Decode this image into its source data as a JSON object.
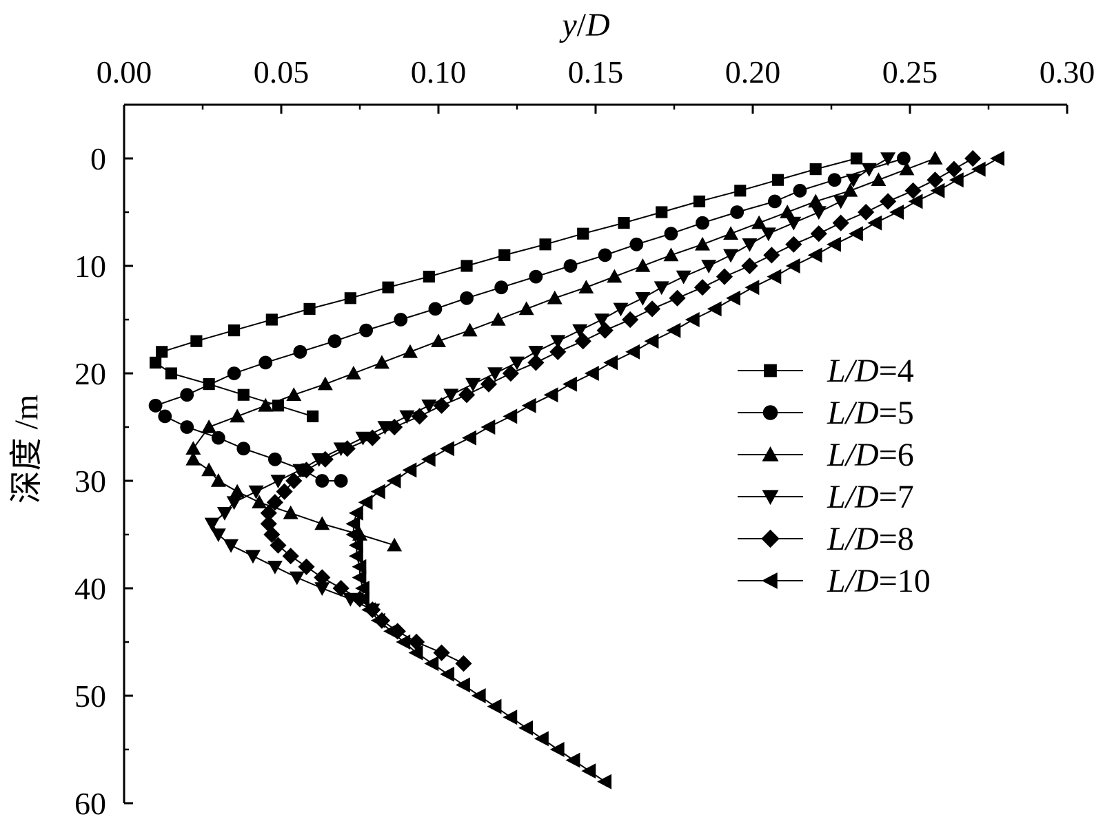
{
  "chart_data": {
    "type": "line",
    "xlabel": {
      "italic_1": "y",
      "plain": "/",
      "italic_2": "D"
    },
    "ylabel": "深度 /m",
    "x_axis_position": "top",
    "y_axis_inverted": true,
    "xlim": [
      0,
      0.3
    ],
    "ylim": [
      60,
      -5
    ],
    "xticks": [
      "0.00",
      "0.05",
      "0.10",
      "0.15",
      "0.20",
      "0.25",
      "0.30"
    ],
    "yticks": [
      "0",
      "10",
      "20",
      "30",
      "40",
      "50",
      "60"
    ],
    "grid": false,
    "legend_position": "right",
    "series": [
      {
        "name": "L/D=4",
        "name_italic": "L/D",
        "name_value": "=4",
        "marker": "square",
        "x": [
          0.233,
          0.22,
          0.208,
          0.196,
          0.183,
          0.171,
          0.159,
          0.146,
          0.134,
          0.121,
          0.109,
          0.097,
          0.084,
          0.072,
          0.059,
          0.047,
          0.035,
          0.023,
          0.012,
          0.01,
          0.015,
          0.027,
          0.038,
          0.049,
          0.06
        ],
        "y": [
          0,
          1,
          2,
          3,
          4,
          5,
          6,
          7,
          8,
          9,
          10,
          11,
          12,
          13,
          14,
          15,
          16,
          17,
          18,
          19,
          20,
          21,
          22,
          23,
          24
        ]
      },
      {
        "name": "L/D=5",
        "name_italic": "L/D",
        "name_value": "=5",
        "marker": "circle",
        "x": [
          0.248,
          0.226,
          0.215,
          0.207,
          0.195,
          0.184,
          0.174,
          0.163,
          0.153,
          0.142,
          0.131,
          0.12,
          0.109,
          0.099,
          0.088,
          0.077,
          0.067,
          0.056,
          0.045,
          0.035,
          0.02,
          0.01,
          0.013,
          0.02,
          0.03,
          0.038,
          0.048,
          0.057,
          0.063,
          0.069
        ],
        "y": [
          0,
          2,
          3,
          4,
          5,
          6,
          7,
          8,
          9,
          10,
          11,
          12,
          13,
          14,
          15,
          16,
          17,
          18,
          19,
          20,
          22,
          23,
          24,
          25,
          26,
          27,
          28,
          29,
          30,
          30
        ]
      },
      {
        "name": "L/D=6",
        "name_italic": "L/D",
        "name_value": "=6",
        "marker": "triangle-up",
        "x": [
          0.258,
          0.249,
          0.24,
          0.231,
          0.22,
          0.211,
          0.202,
          0.193,
          0.184,
          0.174,
          0.165,
          0.156,
          0.147,
          0.137,
          0.128,
          0.119,
          0.11,
          0.1,
          0.091,
          0.082,
          0.073,
          0.064,
          0.054,
          0.045,
          0.036,
          0.027,
          0.022,
          0.022,
          0.027,
          0.03,
          0.036,
          0.043,
          0.053,
          0.063,
          0.075,
          0.086
        ],
        "y": [
          0,
          1,
          2,
          3,
          4,
          5,
          6,
          7,
          8,
          9,
          10,
          11,
          12,
          13,
          14,
          15,
          16,
          17,
          18,
          19,
          20,
          21,
          22,
          23,
          24,
          25,
          27,
          28,
          29,
          30,
          31,
          32,
          33,
          34,
          35,
          36
        ]
      },
      {
        "name": "L/D=7",
        "name_italic": "L/D",
        "name_value": "=7",
        "marker": "triangle-down",
        "x": [
          0.243,
          0.237,
          0.232,
          0.228,
          0.221,
          0.213,
          0.205,
          0.199,
          0.193,
          0.186,
          0.178,
          0.171,
          0.165,
          0.158,
          0.152,
          0.145,
          0.138,
          0.131,
          0.125,
          0.118,
          0.111,
          0.104,
          0.097,
          0.09,
          0.083,
          0.076,
          0.069,
          0.062,
          0.056,
          0.049,
          0.042,
          0.035,
          0.032,
          0.028,
          0.03,
          0.034,
          0.041,
          0.048,
          0.055,
          0.063,
          0.072,
          0.079
        ],
        "y": [
          0,
          1,
          2,
          4,
          5,
          6,
          7,
          8,
          9,
          10,
          11,
          12,
          13,
          14,
          15,
          16,
          17,
          18,
          19,
          20,
          21,
          22,
          23,
          24,
          25,
          26,
          27,
          28,
          29,
          30,
          31,
          32,
          33,
          34,
          35,
          36,
          37,
          38,
          39,
          40,
          41,
          42
        ]
      },
      {
        "name": "L/D=8",
        "name_italic": "L/D",
        "name_value": "=8",
        "marker": "diamond",
        "x": [
          0.27,
          0.264,
          0.258,
          0.251,
          0.243,
          0.236,
          0.228,
          0.221,
          0.213,
          0.206,
          0.199,
          0.191,
          0.184,
          0.176,
          0.168,
          0.161,
          0.153,
          0.146,
          0.138,
          0.131,
          0.123,
          0.116,
          0.109,
          0.101,
          0.094,
          0.086,
          0.079,
          0.071,
          0.064,
          0.058,
          0.054,
          0.051,
          0.048,
          0.046,
          0.046,
          0.047,
          0.049,
          0.053,
          0.058,
          0.063,
          0.069,
          0.075,
          0.079,
          0.082,
          0.087,
          0.093,
          0.101,
          0.108
        ],
        "y": [
          0,
          1,
          2,
          3,
          4,
          5,
          6,
          7,
          8,
          9,
          10,
          11,
          12,
          13,
          14,
          15,
          16,
          17,
          18,
          19,
          20,
          21,
          22,
          23,
          24,
          25,
          26,
          27,
          28,
          29,
          30,
          31,
          32,
          33,
          34,
          35,
          36,
          37,
          38,
          39,
          40,
          41,
          42,
          43,
          44,
          45,
          46,
          47
        ]
      },
      {
        "name": "L/D=10",
        "name_italic": "L/D",
        "name_value": "=10",
        "marker": "triangle-left",
        "x": [
          0.278,
          0.272,
          0.265,
          0.259,
          0.252,
          0.246,
          0.239,
          0.233,
          0.226,
          0.22,
          0.213,
          0.207,
          0.2,
          0.194,
          0.188,
          0.181,
          0.175,
          0.168,
          0.162,
          0.155,
          0.149,
          0.142,
          0.136,
          0.129,
          0.123,
          0.116,
          0.11,
          0.103,
          0.097,
          0.091,
          0.086,
          0.081,
          0.077,
          0.074,
          0.073,
          0.073,
          0.074,
          0.074,
          0.075,
          0.075,
          0.076,
          0.076,
          0.078,
          0.081,
          0.085,
          0.089,
          0.093,
          0.098,
          0.103,
          0.108,
          0.113,
          0.118,
          0.123,
          0.128,
          0.133,
          0.138,
          0.143,
          0.148,
          0.153
        ],
        "y": [
          0,
          1,
          2,
          3,
          4,
          5,
          6,
          7,
          8,
          9,
          10,
          11,
          12,
          13,
          14,
          15,
          16,
          17,
          18,
          19,
          20,
          21,
          22,
          23,
          24,
          25,
          26,
          27,
          28,
          29,
          30,
          31,
          32,
          33,
          34,
          35,
          36,
          37,
          38,
          39,
          40,
          41,
          42,
          43,
          44,
          45,
          46,
          47,
          48,
          49,
          50,
          51,
          52,
          53,
          54,
          55,
          56,
          57,
          58
        ]
      }
    ]
  }
}
